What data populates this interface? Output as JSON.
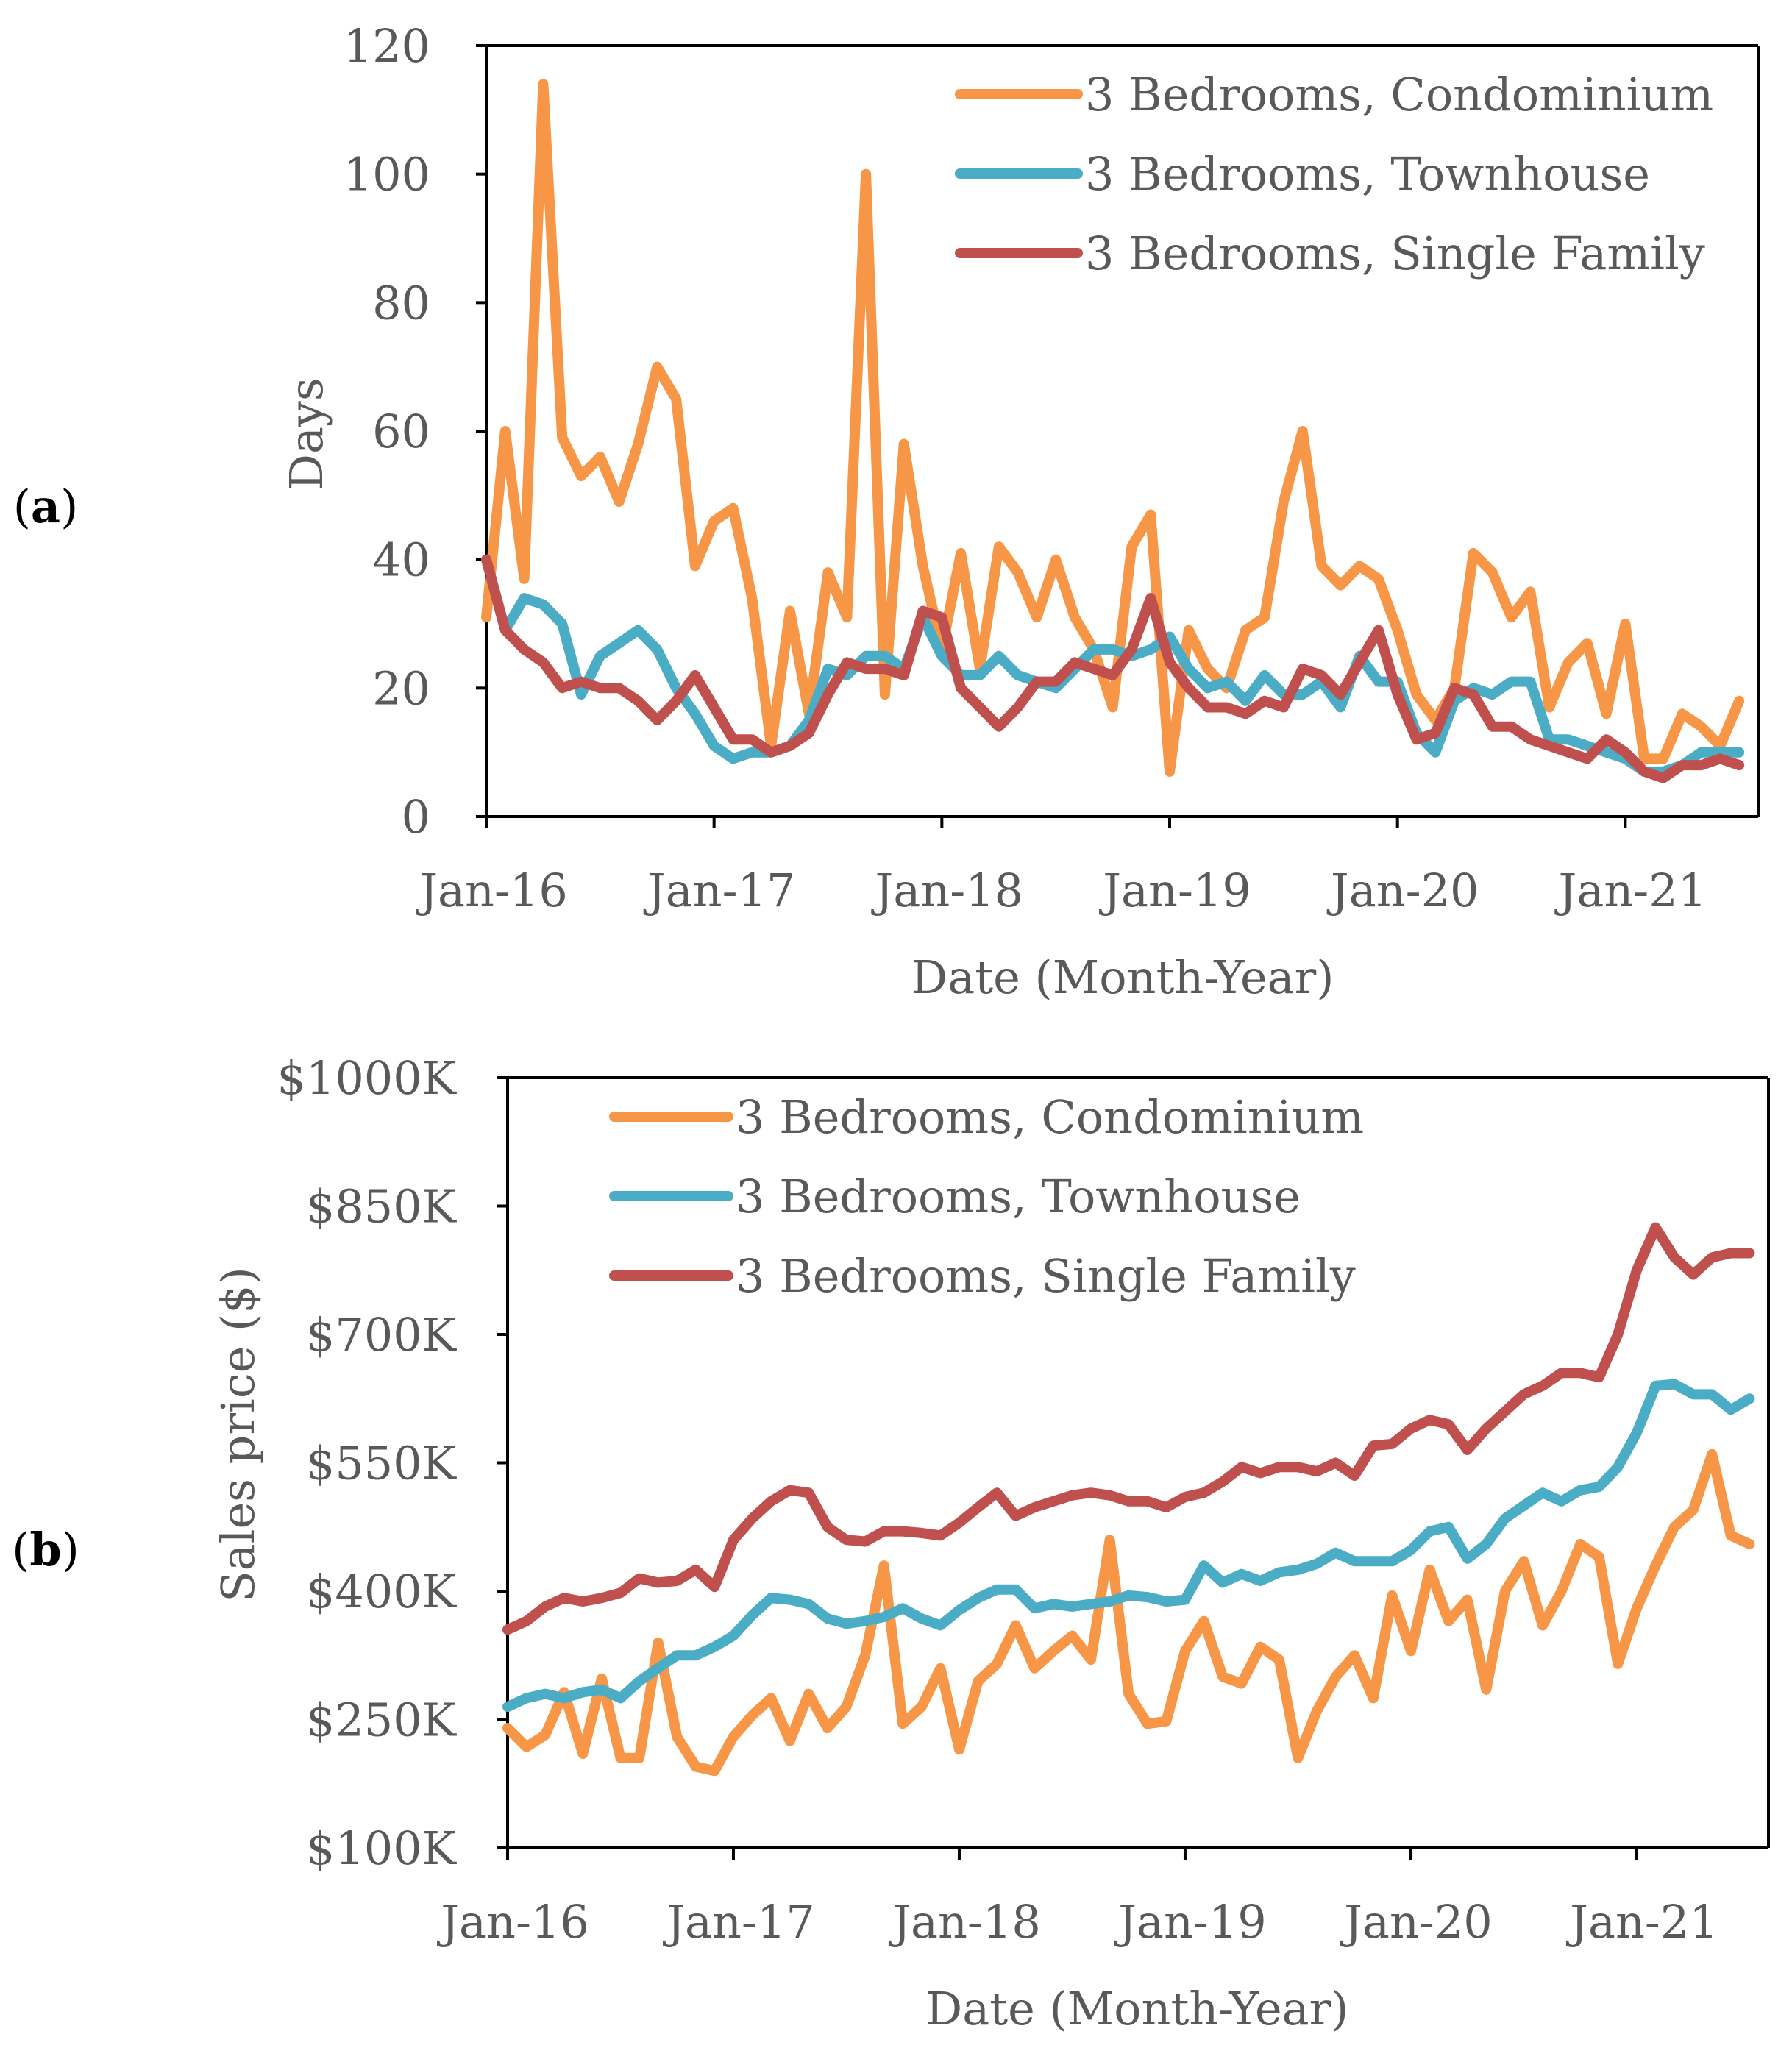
{
  "figure": {
    "background": "#ffffff"
  },
  "chart_data": [
    {
      "id": "a",
      "type": "line",
      "panel_label": "a",
      "xlabel": "Date (Month-Year)",
      "ylabel": "Days",
      "ylim": [
        0,
        120
      ],
      "yticks": [
        0,
        20,
        40,
        60,
        80,
        100,
        120
      ],
      "ytick_labels": [
        "0",
        "20",
        "40",
        "60",
        "80",
        "100",
        "120"
      ],
      "xlim": [
        0,
        67
      ],
      "xticks": [
        0,
        12,
        24,
        36,
        48,
        60
      ],
      "xtick_labels": [
        "Jan-16",
        "Jan-17",
        "Jan-18",
        "Jan-19",
        "Jan-20",
        "Jan-21"
      ],
      "legend_position": "top-right",
      "series": [
        {
          "name": "3 Bedrooms, Condominium",
          "color": "#F79646",
          "values": [
            31,
            60,
            37,
            114,
            59,
            53,
            56,
            49,
            58,
            70,
            65,
            39,
            46,
            48,
            34,
            11,
            32,
            16,
            38,
            31,
            100,
            19,
            58,
            39,
            26,
            41,
            23,
            42,
            38,
            31,
            40,
            31,
            26,
            17,
            42,
            47,
            7,
            29,
            23,
            20,
            29,
            31,
            49,
            60,
            39,
            36,
            39,
            37,
            29,
            19,
            15,
            20,
            41,
            38,
            31,
            35,
            17,
            24,
            27,
            16,
            30,
            9,
            9,
            16,
            14,
            11,
            18
          ]
        },
        {
          "name": "3 Bedrooms, Townhouse",
          "color": "#4BACC6",
          "values": [
            40,
            29,
            34,
            33,
            30,
            19,
            25,
            27,
            29,
            26,
            20,
            16,
            11,
            9,
            10,
            10,
            11,
            15,
            23,
            22,
            25,
            25,
            23,
            31,
            25,
            22,
            22,
            25,
            22,
            21,
            20,
            23,
            26,
            26,
            25,
            26,
            28,
            23,
            20,
            21,
            18,
            22,
            19,
            19,
            21,
            17,
            25,
            21,
            21,
            13,
            10,
            18,
            20,
            19,
            21,
            21,
            12,
            12,
            11,
            10,
            9,
            7,
            7,
            8,
            10,
            10,
            10
          ]
        },
        {
          "name": "3 Bedrooms, Single Family",
          "color": "#C0504D",
          "values": [
            40,
            29,
            26,
            24,
            20,
            21,
            20,
            20,
            18,
            15,
            18,
            22,
            17,
            12,
            12,
            10,
            11,
            13,
            19,
            24,
            23,
            23,
            22,
            32,
            31,
            20,
            17,
            14,
            17,
            21,
            21,
            24,
            23,
            22,
            26,
            34,
            24,
            20,
            17,
            17,
            16,
            18,
            17,
            23,
            22,
            19,
            24,
            29,
            19,
            12,
            13,
            20,
            19,
            14,
            14,
            12,
            11,
            10,
            9,
            12,
            10,
            7,
            6,
            8,
            8,
            9,
            8
          ]
        }
      ]
    },
    {
      "id": "b",
      "type": "line",
      "panel_label": "b",
      "xlabel": "Date (Month-Year)",
      "ylabel": "Sales price ($)",
      "ylim": [
        100,
        1000
      ],
      "yticks": [
        100,
        250,
        400,
        550,
        700,
        850,
        1000
      ],
      "ytick_labels": [
        "$100K",
        "$250K",
        "$400K",
        "$550K",
        "$700K",
        "$850K",
        "$1000K"
      ],
      "xlim": [
        0,
        67
      ],
      "xticks": [
        0,
        12,
        24,
        36,
        48,
        60
      ],
      "xtick_labels": [
        "Jan-16",
        "Jan-17",
        "Jan-18",
        "Jan-19",
        "Jan-20",
        "Jan-21"
      ],
      "legend_position": "top-left",
      "series": [
        {
          "name": "3 Bedrooms, Condominium",
          "color": "#F79646",
          "values": [
            240,
            218,
            232,
            282,
            210,
            298,
            205,
            205,
            340,
            230,
            195,
            190,
            230,
            255,
            275,
            225,
            280,
            240,
            265,
            325,
            430,
            245,
            265,
            310,
            215,
            295,
            315,
            360,
            310,
            330,
            348,
            320,
            460,
            280,
            245,
            248,
            330,
            365,
            300,
            292,
            335,
            320,
            205,
            260,
            300,
            325,
            275,
            395,
            330,
            425,
            365,
            390,
            285,
            400,
            435,
            360,
            400,
            455,
            440,
            315,
            380,
            430,
            475,
            495,
            560,
            465,
            455
          ]
        },
        {
          "name": "3 Bedrooms, Townhouse",
          "color": "#4BACC6",
          "values": [
            265,
            275,
            280,
            275,
            282,
            285,
            275,
            295,
            310,
            325,
            325,
            335,
            348,
            372,
            392,
            390,
            385,
            368,
            362,
            365,
            370,
            380,
            368,
            360,
            378,
            392,
            402,
            402,
            380,
            385,
            382,
            385,
            388,
            395,
            393,
            388,
            390,
            430,
            410,
            420,
            412,
            422,
            425,
            432,
            445,
            435,
            435,
            435,
            448,
            470,
            475,
            438,
            455,
            485,
            500,
            515,
            505,
            518,
            522,
            545,
            585,
            640,
            642,
            630,
            630,
            612,
            625
          ]
        },
        {
          "name": "3 Bedrooms, Single Family",
          "color": "#C0504D",
          "values": [
            355,
            365,
            382,
            392,
            388,
            392,
            398,
            415,
            410,
            412,
            425,
            405,
            460,
            485,
            505,
            518,
            515,
            475,
            460,
            458,
            470,
            470,
            468,
            465,
            480,
            498,
            515,
            488,
            498,
            505,
            512,
            515,
            512,
            505,
            505,
            498,
            510,
            515,
            528,
            545,
            538,
            545,
            545,
            540,
            550,
            535,
            570,
            572,
            590,
            600,
            595,
            565,
            590,
            610,
            630,
            640,
            655,
            655,
            650,
            700,
            775,
            825,
            790,
            770,
            790,
            795,
            795
          ]
        }
      ]
    }
  ]
}
